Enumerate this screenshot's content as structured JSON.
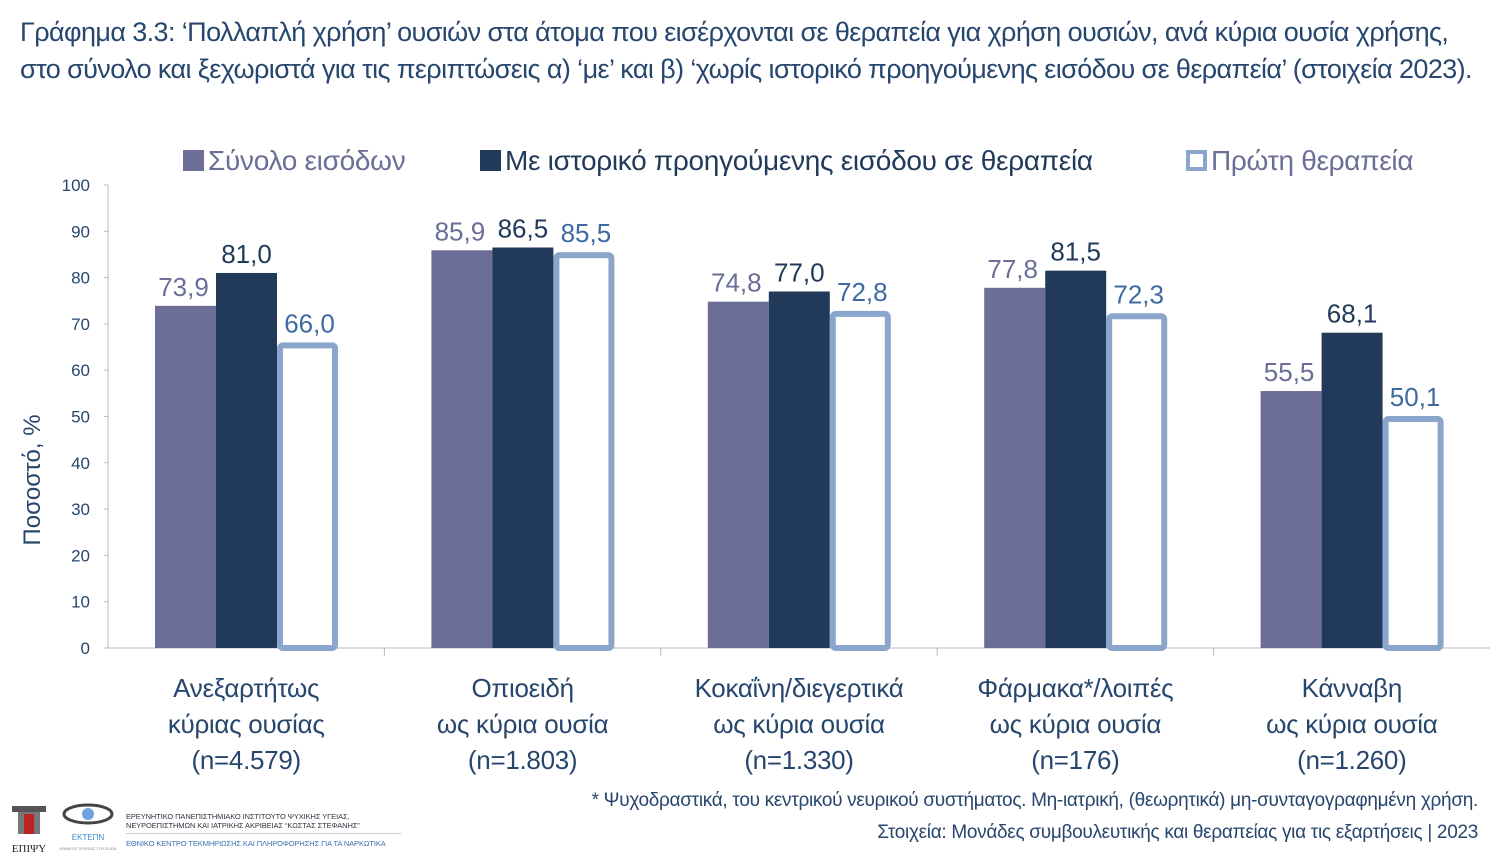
{
  "title": "Γράφημα 3.3: ‘Πολλαπλή χρήση’ ουσιών στα άτομα που εισέρχονται σε θεραπεία για χρήση ουσιών, ανά κύρια ουσία χρήσης, στο σύνολο και ξεχωριστά για τις περιπτώσεις α) ‘με’ και β) ‘χωρίς ιστορικό προηγούμενης εισόδου σε θεραπεία’ (στοιχεία 2023).",
  "chart_data": {
    "type": "bar",
    "ylabel": "Ποσοστό, %",
    "ylim": [
      0,
      100
    ],
    "yticks": [
      0,
      10,
      20,
      30,
      40,
      50,
      60,
      70,
      80,
      90,
      100
    ],
    "grid": false,
    "legend_position": "top",
    "categories": [
      [
        "Ανεξαρτήτως",
        "κύριας ουσίας",
        "(n=4.579)"
      ],
      [
        "Οπιοειδή",
        "ως κύρια ουσία",
        "(n=1.803)"
      ],
      [
        "Κοκαΐνη/διεγερτικά",
        "ως κύρια ουσία",
        "(n=1.330)"
      ],
      [
        "Φάρμακα*/λοιπές",
        "ως κύρια ουσία",
        "(n=176)"
      ],
      [
        "Κάνναβη",
        "ως κύρια ουσία",
        "(n=1.260)"
      ]
    ],
    "series": [
      {
        "name": "Σύνολο εισόδων",
        "values": [
          73.9,
          85.9,
          74.8,
          77.8,
          55.5
        ],
        "labels": [
          "73,9",
          "85,9",
          "74,8",
          "77,8",
          "55,5"
        ],
        "color": "#6b6e96",
        "label_color": "#6b6e96",
        "style": "filled"
      },
      {
        "name": "Με ιστορικό προηγούμενης εισόδου σε θεραπεία",
        "values": [
          81.0,
          86.5,
          77.0,
          81.5,
          68.1
        ],
        "labels": [
          "81,0",
          "86,5",
          "77,0",
          "81,5",
          "68,1"
        ],
        "color": "#213a5a",
        "label_color": "#213a5a",
        "style": "filled"
      },
      {
        "name": "Πρώτη θεραπεία",
        "values": [
          66.0,
          85.5,
          72.8,
          72.3,
          50.1
        ],
        "labels": [
          "66,0",
          "85,5",
          "72,8",
          "72,3",
          "50,1"
        ],
        "color": "#8aa6cc",
        "label_color": "#3e6aa0",
        "style": "outline"
      }
    ]
  },
  "footnote": "* Ψυχοδραστικά, του κεντρικού νευρικού συστήματος. Μη-ιατρική, (θεωρητικά) μη-συνταγογραφημένη χρήση.",
  "source": "Στοιχεία: Μονάδες συμβουλευτικής και θεραπείας για τις εξαρτήσεις | 2023",
  "logos": {
    "epipsy": "ΕΠΙΨΥ",
    "ektepn": "ΕΚΤΕΠΝ",
    "ektepn_sub": "ΕΘΝΙΚΟΣ ΦΟΡΕΑΣ ΤΟΥ EUDA",
    "institute_line1": "ΕΡΕΥΝΗΤΙΚΟ ΠΑΝΕΠΙΣΤΗΜΙΑΚΟ ΙΝΣΤΙΤΟΥΤΟ ΨΥΧΙΚΗΣ ΥΓΕΙΑΣ,",
    "institute_line2": "ΝΕΥΡΟΕΠΙΣΤΗΜΩΝ ΚΑΙ ΙΑΤΡΙΚΗΣ ΑΚΡΙΒΕΙΑΣ “ΚΩΣΤΑΣ ΣΤΕΦΑΝΗΣ”",
    "centre": "ΕΘΝΙΚΟ ΚΕΝΤΡΟ ΤΕΚΜΗΡΙΩΣΗΣ ΚΑΙ ΠΛΗΡΟΦΟΡΗΣΗΣ ΓΙΑ ΤΑ ΝΑΡΚΩΤΙΚΑ"
  }
}
